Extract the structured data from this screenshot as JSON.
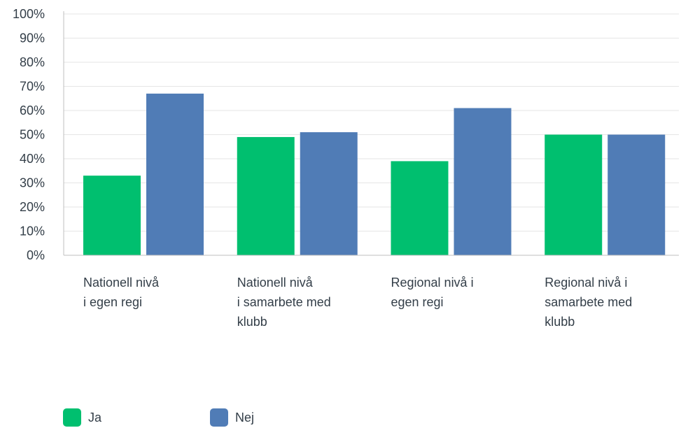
{
  "chart_data": {
    "type": "bar",
    "categories": [
      [
        "Nationell nivå",
        "i egen regi"
      ],
      [
        "Nationell nivå",
        "i samarbete med",
        "klubb"
      ],
      [
        "Regional nivå i",
        "egen regi"
      ],
      [
        "Regional nivå i",
        "samarbete med",
        "klubb"
      ]
    ],
    "series": [
      {
        "name": "Ja",
        "color": "#00bf6f",
        "values": [
          33,
          49,
          39,
          50
        ]
      },
      {
        "name": "Nej",
        "color": "#507cb6",
        "values": [
          67,
          51,
          61,
          50
        ]
      }
    ],
    "ylim": [
      0,
      100
    ],
    "yticks": [
      "0%",
      "10%",
      "20%",
      "30%",
      "40%",
      "50%",
      "60%",
      "70%",
      "80%",
      "90%",
      "100%"
    ],
    "grid": true,
    "legend_position": "bottom-left"
  }
}
